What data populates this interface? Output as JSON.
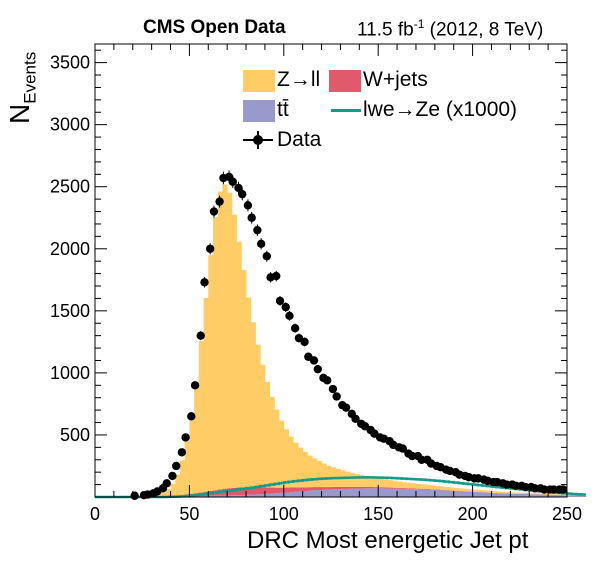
{
  "header": {
    "left": "CMS Open Data",
    "lumi_value": "11.5 fb",
    "lumi_exp": "-1",
    "lumi_rest": " (2012, 8 TeV)"
  },
  "axes": {
    "ylabel_main": "N",
    "ylabel_sub": "Events",
    "xlabel": "DRC Most energetic Jet pt"
  },
  "legend": {
    "zll": "Z→ll",
    "wjets": "W+jets",
    "ttbar": "tt̄",
    "signal": "lwe→Ze (x1000)",
    "data": "Data"
  },
  "colors": {
    "zll": "#ffcc66",
    "wjets": "#e05a6b",
    "ttbar": "#9999cc",
    "signal": "#159b8a",
    "data": "#000000"
  },
  "chart_data": {
    "type": "stacked-histogram",
    "x_range": [
      0,
      250
    ],
    "y_range": [
      0,
      3650
    ],
    "x_ticks": [
      0,
      50,
      100,
      150,
      200,
      250
    ],
    "y_ticks": [
      500,
      1000,
      1500,
      2000,
      2500,
      3000,
      3500
    ],
    "bin_edges_start": 20,
    "bin_width": 2.5,
    "stack_series": [
      {
        "name": "tt̄",
        "key": "ttbar",
        "values": [
          0,
          0,
          0,
          0,
          0,
          1,
          1,
          2,
          2,
          3,
          3,
          4,
          5,
          6,
          7,
          8,
          9,
          10,
          11,
          12,
          13,
          14,
          15,
          16,
          18,
          20,
          22,
          24,
          26,
          28,
          30,
          33,
          36,
          39,
          42,
          45,
          48,
          51,
          54,
          56,
          58,
          60,
          62,
          64,
          65,
          66,
          67,
          68,
          69,
          70,
          70,
          70,
          70,
          69,
          68,
          67,
          66,
          65,
          64,
          63,
          62,
          61,
          60,
          58,
          56,
          54,
          52,
          50,
          48,
          46,
          44,
          42,
          40,
          38,
          36,
          34,
          32,
          30,
          28,
          27,
          26,
          25,
          24,
          23,
          22,
          21,
          20,
          19,
          18,
          17,
          16,
          15,
          14,
          13,
          12,
          11
        ]
      },
      {
        "name": "W+jets",
        "key": "wjets",
        "values": [
          0,
          0,
          0,
          0,
          0,
          1,
          2,
          3,
          5,
          8,
          12,
          16,
          20,
          25,
          30,
          35,
          40,
          45,
          50,
          55,
          58,
          60,
          62,
          62,
          60,
          58,
          55,
          52,
          50,
          48,
          45,
          42,
          40,
          38,
          35,
          33,
          30,
          28,
          26,
          24,
          22,
          20,
          19,
          18,
          17,
          16,
          15,
          14,
          13,
          12,
          11,
          10,
          9,
          9,
          8,
          8,
          7,
          7,
          6,
          6,
          5,
          5,
          5,
          4,
          4,
          4,
          3,
          3,
          3,
          3,
          2,
          2,
          2,
          2,
          2,
          2,
          1,
          1,
          1,
          1,
          1,
          1,
          1,
          1,
          1,
          1,
          1,
          1,
          0,
          0,
          0,
          0,
          0,
          0,
          0,
          0
        ]
      },
      {
        "name": "Z→ll",
        "key": "zll",
        "values": [
          2,
          3,
          5,
          8,
          12,
          20,
          35,
          60,
          100,
          170,
          280,
          430,
          640,
          900,
          1220,
          1560,
          1900,
          2200,
          2400,
          2450,
          2380,
          2200,
          1980,
          1750,
          1530,
          1330,
          1150,
          990,
          850,
          730,
          630,
          540,
          470,
          410,
          360,
          320,
          285,
          255,
          230,
          210,
          190,
          172,
          158,
          145,
          133,
          122,
          112,
          103,
          95,
          88,
          81,
          75,
          70,
          65,
          60,
          56,
          52,
          48,
          45,
          42,
          39,
          36,
          34,
          32,
          30,
          28,
          26,
          24,
          22,
          21,
          20,
          19,
          18,
          17,
          16,
          15,
          14,
          13,
          12,
          11,
          10,
          10,
          9,
          9,
          8,
          8,
          7,
          7,
          6,
          6,
          5,
          5,
          5,
          4,
          4,
          4
        ]
      }
    ],
    "signal_series": {
      "name": "lwe→Ze (x1000)",
      "key": "signal",
      "values": [
        0,
        0,
        0,
        0,
        0,
        0,
        0,
        1,
        2,
        3,
        5,
        8,
        12,
        16,
        20,
        25,
        30,
        35,
        40,
        45,
        50,
        55,
        60,
        65,
        70,
        76,
        82,
        88,
        94,
        100,
        106,
        112,
        118,
        123,
        128,
        132,
        136,
        140,
        143,
        146,
        148,
        150,
        152,
        153,
        154,
        155,
        156,
        157,
        158,
        158,
        158,
        157,
        156,
        155,
        154,
        152,
        150,
        148,
        146,
        144,
        142,
        140,
        137,
        134,
        131,
        128,
        124,
        120,
        116,
        112,
        108,
        104,
        100,
        96,
        92,
        88,
        84,
        80,
        76,
        72,
        68,
        64,
        60,
        56,
        52,
        48,
        45,
        42,
        39,
        36,
        33,
        30,
        27,
        24,
        22,
        20
      ]
    },
    "data_series": {
      "name": "Data",
      "x": [
        21,
        26,
        28,
        31,
        33,
        36,
        38,
        41,
        43,
        46,
        48,
        51,
        53,
        56,
        58,
        61,
        63,
        66,
        68,
        71,
        73,
        76,
        78,
        81,
        83,
        86,
        88,
        91,
        93,
        96,
        98,
        101,
        103,
        106,
        108,
        111,
        113,
        116,
        118,
        121,
        123,
        126,
        128,
        131,
        133,
        136,
        138,
        141,
        143,
        146,
        148,
        151,
        153,
        156,
        158,
        161,
        163,
        166,
        168,
        171,
        173,
        176,
        178,
        181,
        183,
        186,
        188,
        191,
        193,
        196,
        198,
        201,
        203,
        206,
        208,
        211,
        213,
        216,
        218,
        221,
        223,
        226,
        228,
        231,
        233,
        236,
        238,
        241,
        243,
        246,
        248
      ],
      "y": [
        10,
        15,
        20,
        30,
        45,
        70,
        110,
        170,
        250,
        360,
        480,
        650,
        900,
        1300,
        1730,
        2000,
        2300,
        2380,
        2570,
        2580,
        2540,
        2490,
        2440,
        2350,
        2250,
        2150,
        2040,
        1940,
        1770,
        1780,
        1580,
        1530,
        1460,
        1360,
        1280,
        1250,
        1130,
        1100,
        1030,
        960,
        940,
        870,
        810,
        740,
        720,
        670,
        630,
        590,
        570,
        540,
        510,
        480,
        470,
        450,
        420,
        400,
        390,
        350,
        330,
        330,
        300,
        300,
        270,
        250,
        240,
        220,
        210,
        200,
        180,
        170,
        160,
        150,
        150,
        140,
        130,
        120,
        120,
        110,
        100,
        100,
        90,
        90,
        80,
        80,
        70,
        70,
        60,
        60,
        60,
        60,
        60
      ]
    }
  }
}
